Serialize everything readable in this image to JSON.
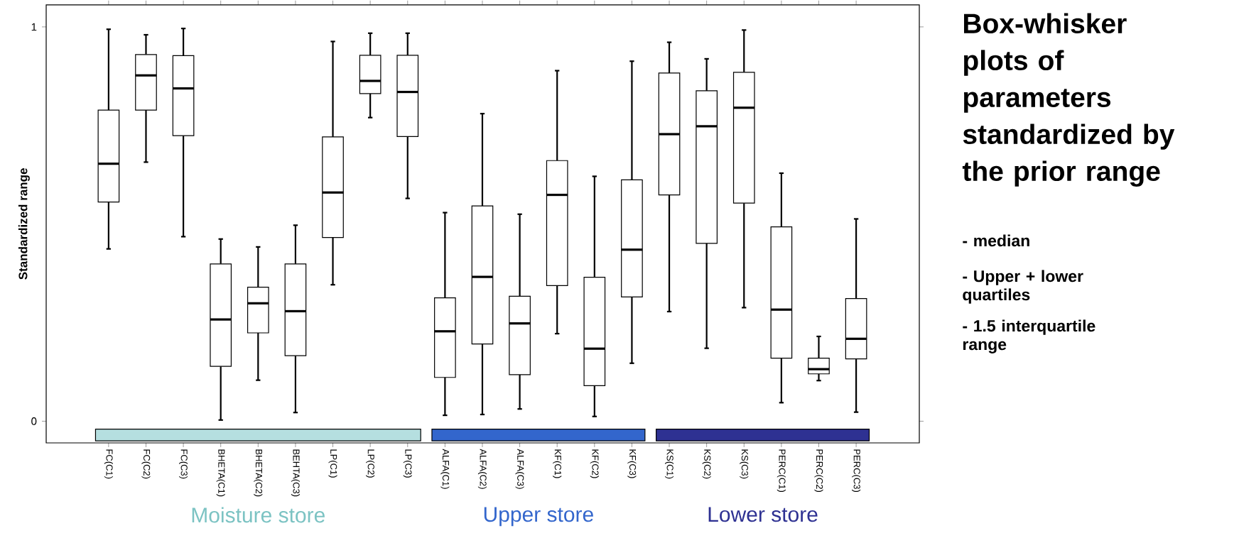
{
  "chart_data": {
    "type": "box",
    "title": "Box-whisker plots of parameters standardized by the prior range",
    "ylabel": "Standardized range",
    "categories": [
      "FC(C1)",
      "FC(C2)",
      "FC(C3)",
      "BHETA(C1)",
      "BHETA(C2)",
      "BEHTA(C3)",
      "LP(C1)",
      "LP(C2)",
      "LP(C3)",
      "ALFA(C1)",
      "ALFA(C2)",
      "ALFA(C3)",
      "KF(C1)",
      "KF(C2)",
      "KF(C3)",
      "KS(C1)",
      "KS(C2)",
      "KS(C3)",
      "PERC(C1)",
      "PERC(C2)",
      "PERC(C3)"
    ],
    "boxes": [
      {
        "low": 0.437,
        "q1": 0.556,
        "median": 0.653,
        "q3": 0.789,
        "high": 0.994
      },
      {
        "low": 0.657,
        "q1": 0.789,
        "median": 0.877,
        "q3": 0.93,
        "high": 0.98
      },
      {
        "low": 0.468,
        "q1": 0.724,
        "median": 0.844,
        "q3": 0.927,
        "high": 0.996
      },
      {
        "low": 0.003,
        "q1": 0.139,
        "median": 0.258,
        "q3": 0.399,
        "high": 0.462
      },
      {
        "low": 0.104,
        "q1": 0.224,
        "median": 0.299,
        "q3": 0.34,
        "high": 0.442
      },
      {
        "low": 0.022,
        "q1": 0.166,
        "median": 0.279,
        "q3": 0.399,
        "high": 0.497
      },
      {
        "low": 0.346,
        "q1": 0.466,
        "median": 0.58,
        "q3": 0.721,
        "high": 0.963
      },
      {
        "low": 0.77,
        "q1": 0.831,
        "median": 0.863,
        "q3": 0.928,
        "high": 0.984
      },
      {
        "low": 0.565,
        "q1": 0.722,
        "median": 0.835,
        "q3": 0.928,
        "high": 0.984
      },
      {
        "low": 0.015,
        "q1": 0.111,
        "median": 0.228,
        "q3": 0.313,
        "high": 0.529
      },
      {
        "low": 0.017,
        "q1": 0.196,
        "median": 0.366,
        "q3": 0.546,
        "high": 0.78
      },
      {
        "low": 0.031,
        "q1": 0.118,
        "median": 0.248,
        "q3": 0.317,
        "high": 0.525
      },
      {
        "low": 0.222,
        "q1": 0.344,
        "median": 0.574,
        "q3": 0.661,
        "high": 0.889
      },
      {
        "low": 0.012,
        "q1": 0.09,
        "median": 0.184,
        "q3": 0.365,
        "high": 0.621
      },
      {
        "low": 0.147,
        "q1": 0.315,
        "median": 0.435,
        "q3": 0.612,
        "high": 0.913
      },
      {
        "low": 0.278,
        "q1": 0.574,
        "median": 0.728,
        "q3": 0.883,
        "high": 0.961
      },
      {
        "low": 0.185,
        "q1": 0.451,
        "median": 0.748,
        "q3": 0.838,
        "high": 0.919
      },
      {
        "low": 0.288,
        "q1": 0.553,
        "median": 0.795,
        "q3": 0.885,
        "high": 0.992
      },
      {
        "low": 0.047,
        "q1": 0.16,
        "median": 0.283,
        "q3": 0.493,
        "high": 0.629
      },
      {
        "low": 0.103,
        "q1": 0.12,
        "median": 0.132,
        "q3": 0.16,
        "high": 0.215
      },
      {
        "low": 0.023,
        "q1": 0.158,
        "median": 0.209,
        "q3": 0.311,
        "high": 0.513
      }
    ],
    "ylim": [
      -0.055,
      1.056
    ],
    "yticks": [
      0,
      1
    ],
    "annotations": [
      "Moisture store",
      "Upper store",
      "Lower store",
      "- median",
      "- Upper + lower quartiles",
      "- 1.5 interquartile range"
    ],
    "grid": false
  }
}
